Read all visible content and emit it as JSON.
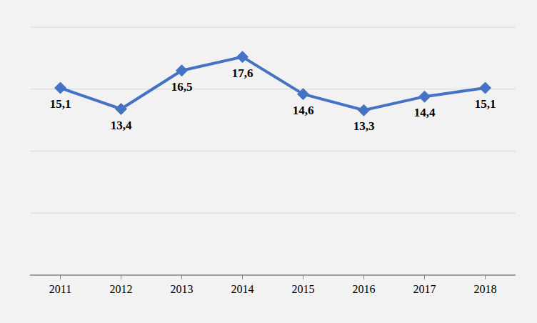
{
  "chart_data": {
    "type": "line",
    "categories": [
      "2011",
      "2012",
      "2013",
      "2014",
      "2015",
      "2016",
      "2017",
      "2018"
    ],
    "values": [
      15.1,
      13.4,
      16.5,
      17.6,
      14.6,
      13.3,
      14.4,
      15.1
    ],
    "value_labels": [
      "15,1",
      "13,4",
      "16,5",
      "17,6",
      "14,6",
      "13,3",
      "14,4",
      "15,1"
    ],
    "color": "#4472c4",
    "marker": "diamond",
    "ylim": [
      0,
      20
    ],
    "yticks": [
      0,
      5,
      10,
      15,
      20
    ],
    "grid": true,
    "data_labels": true,
    "tick_labels": "x"
  }
}
